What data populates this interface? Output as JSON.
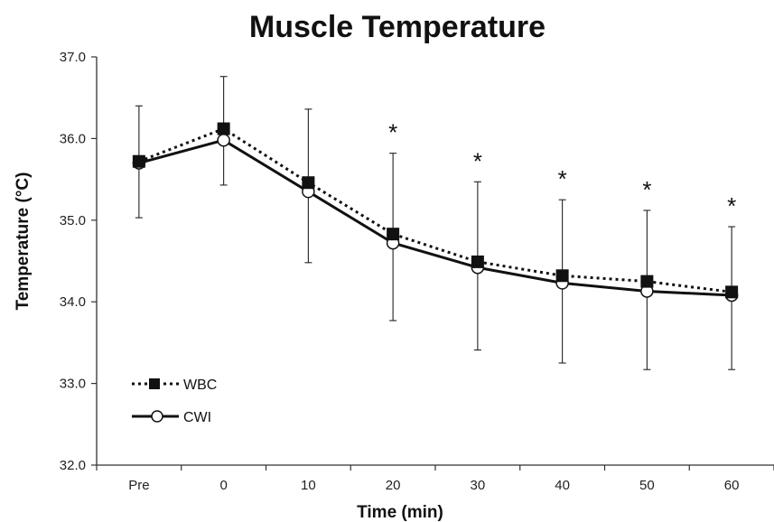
{
  "chart_data": {
    "type": "line",
    "title": "Muscle Temperature",
    "xlabel": "Time (min)",
    "ylabel": "Temperature (°C)",
    "categories": [
      "Pre",
      "0",
      "10",
      "20",
      "30",
      "40",
      "50",
      "60"
    ],
    "ylim": [
      32.0,
      37.0
    ],
    "yticks": [
      "32.0",
      "33.0",
      "34.0",
      "35.0",
      "36.0",
      "37.0"
    ],
    "grid": false,
    "legend_position": "bottom-left",
    "series": [
      {
        "name": "WBC",
        "line_style": "dotted",
        "marker": "filled-square",
        "color": "#111111",
        "values": [
          35.72,
          36.12,
          35.46,
          34.83,
          34.49,
          34.32,
          34.25,
          34.12
        ]
      },
      {
        "name": "CWI",
        "line_style": "solid",
        "marker": "open-circle",
        "color": "#111111",
        "values": [
          35.7,
          35.98,
          35.35,
          34.72,
          34.42,
          34.23,
          34.13,
          34.08
        ]
      }
    ],
    "error_bars": {
      "upper": [
        36.4,
        36.76,
        36.36,
        35.82,
        35.47,
        35.25,
        35.12,
        34.92
      ],
      "lower": [
        35.03,
        35.43,
        34.48,
        33.77,
        33.41,
        33.25,
        33.17,
        33.17
      ]
    },
    "annotations": [
      {
        "category": "20",
        "text": "*"
      },
      {
        "category": "30",
        "text": "*"
      },
      {
        "category": "40",
        "text": "*"
      },
      {
        "category": "50",
        "text": "*"
      },
      {
        "category": "60",
        "text": "*"
      }
    ]
  }
}
